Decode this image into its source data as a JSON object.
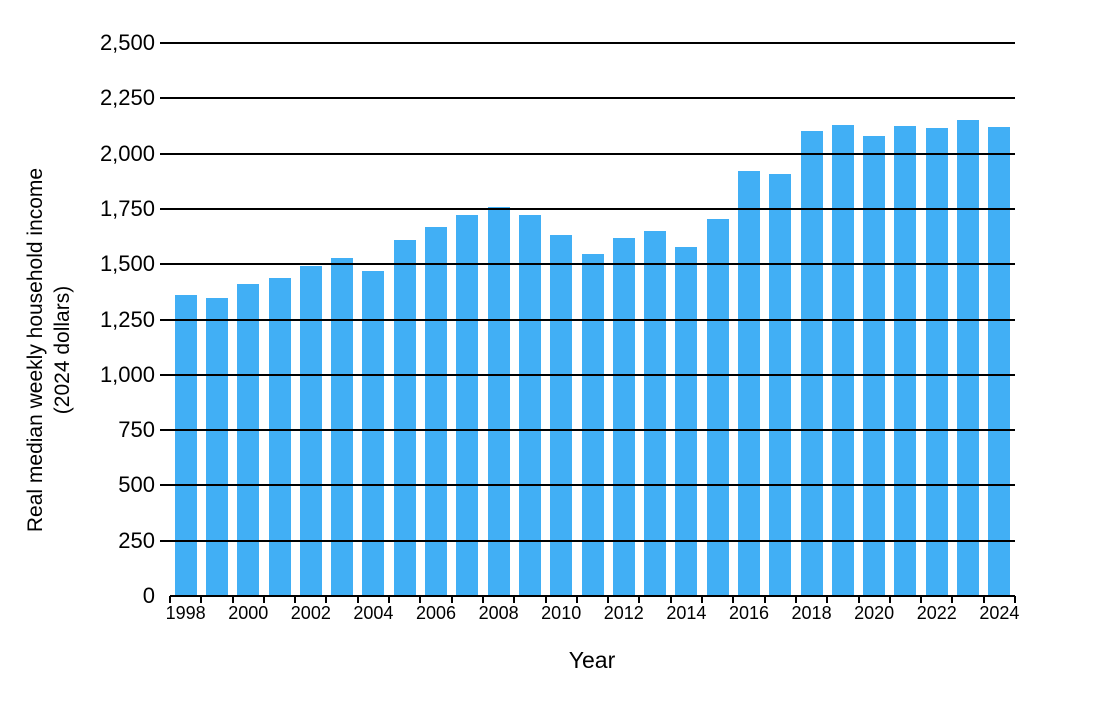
{
  "chart_data": {
    "type": "bar",
    "title": "",
    "xlabel": "Year",
    "ylabel_line1": "Real median weekly household income",
    "ylabel_line2": "(2024 dollars)",
    "categories": [
      1998,
      1999,
      2000,
      2001,
      2002,
      2003,
      2004,
      2005,
      2006,
      2007,
      2008,
      2009,
      2010,
      2011,
      2012,
      2013,
      2014,
      2015,
      2016,
      2017,
      2018,
      2019,
      2020,
      2021,
      2022,
      2023,
      2024
    ],
    "values": [
      1362,
      1348,
      1412,
      1436,
      1493,
      1528,
      1470,
      1610,
      1669,
      1721,
      1758,
      1721,
      1630,
      1544,
      1620,
      1648,
      1578,
      1705,
      1922,
      1906,
      2102,
      2129,
      2078,
      2127,
      2118,
      2150,
      2122
    ],
    "ylim": [
      0,
      2500
    ],
    "ytick_step": 250,
    "ytick_labels": [
      "0",
      "250",
      "500",
      "750",
      "1,000",
      "1,250",
      "1,500",
      "1,750",
      "2,000",
      "2,250",
      "2,500"
    ],
    "xtick_labels": [
      "1998",
      "2000",
      "2002",
      "2004",
      "2006",
      "2008",
      "2010",
      "2012",
      "2014",
      "2016",
      "2018",
      "2020",
      "2022",
      "2024"
    ],
    "xtick_label_slot_indices": [
      0,
      2,
      4,
      6,
      8,
      10,
      12,
      14,
      16,
      18,
      20,
      22,
      24,
      26
    ],
    "grid": true,
    "gridlines_over_bars": true,
    "legend": "none",
    "bar_color": "#41AFF5",
    "gridline_color": "#000000",
    "text_color": "#000000",
    "background_color": "#FFFFFF"
  }
}
